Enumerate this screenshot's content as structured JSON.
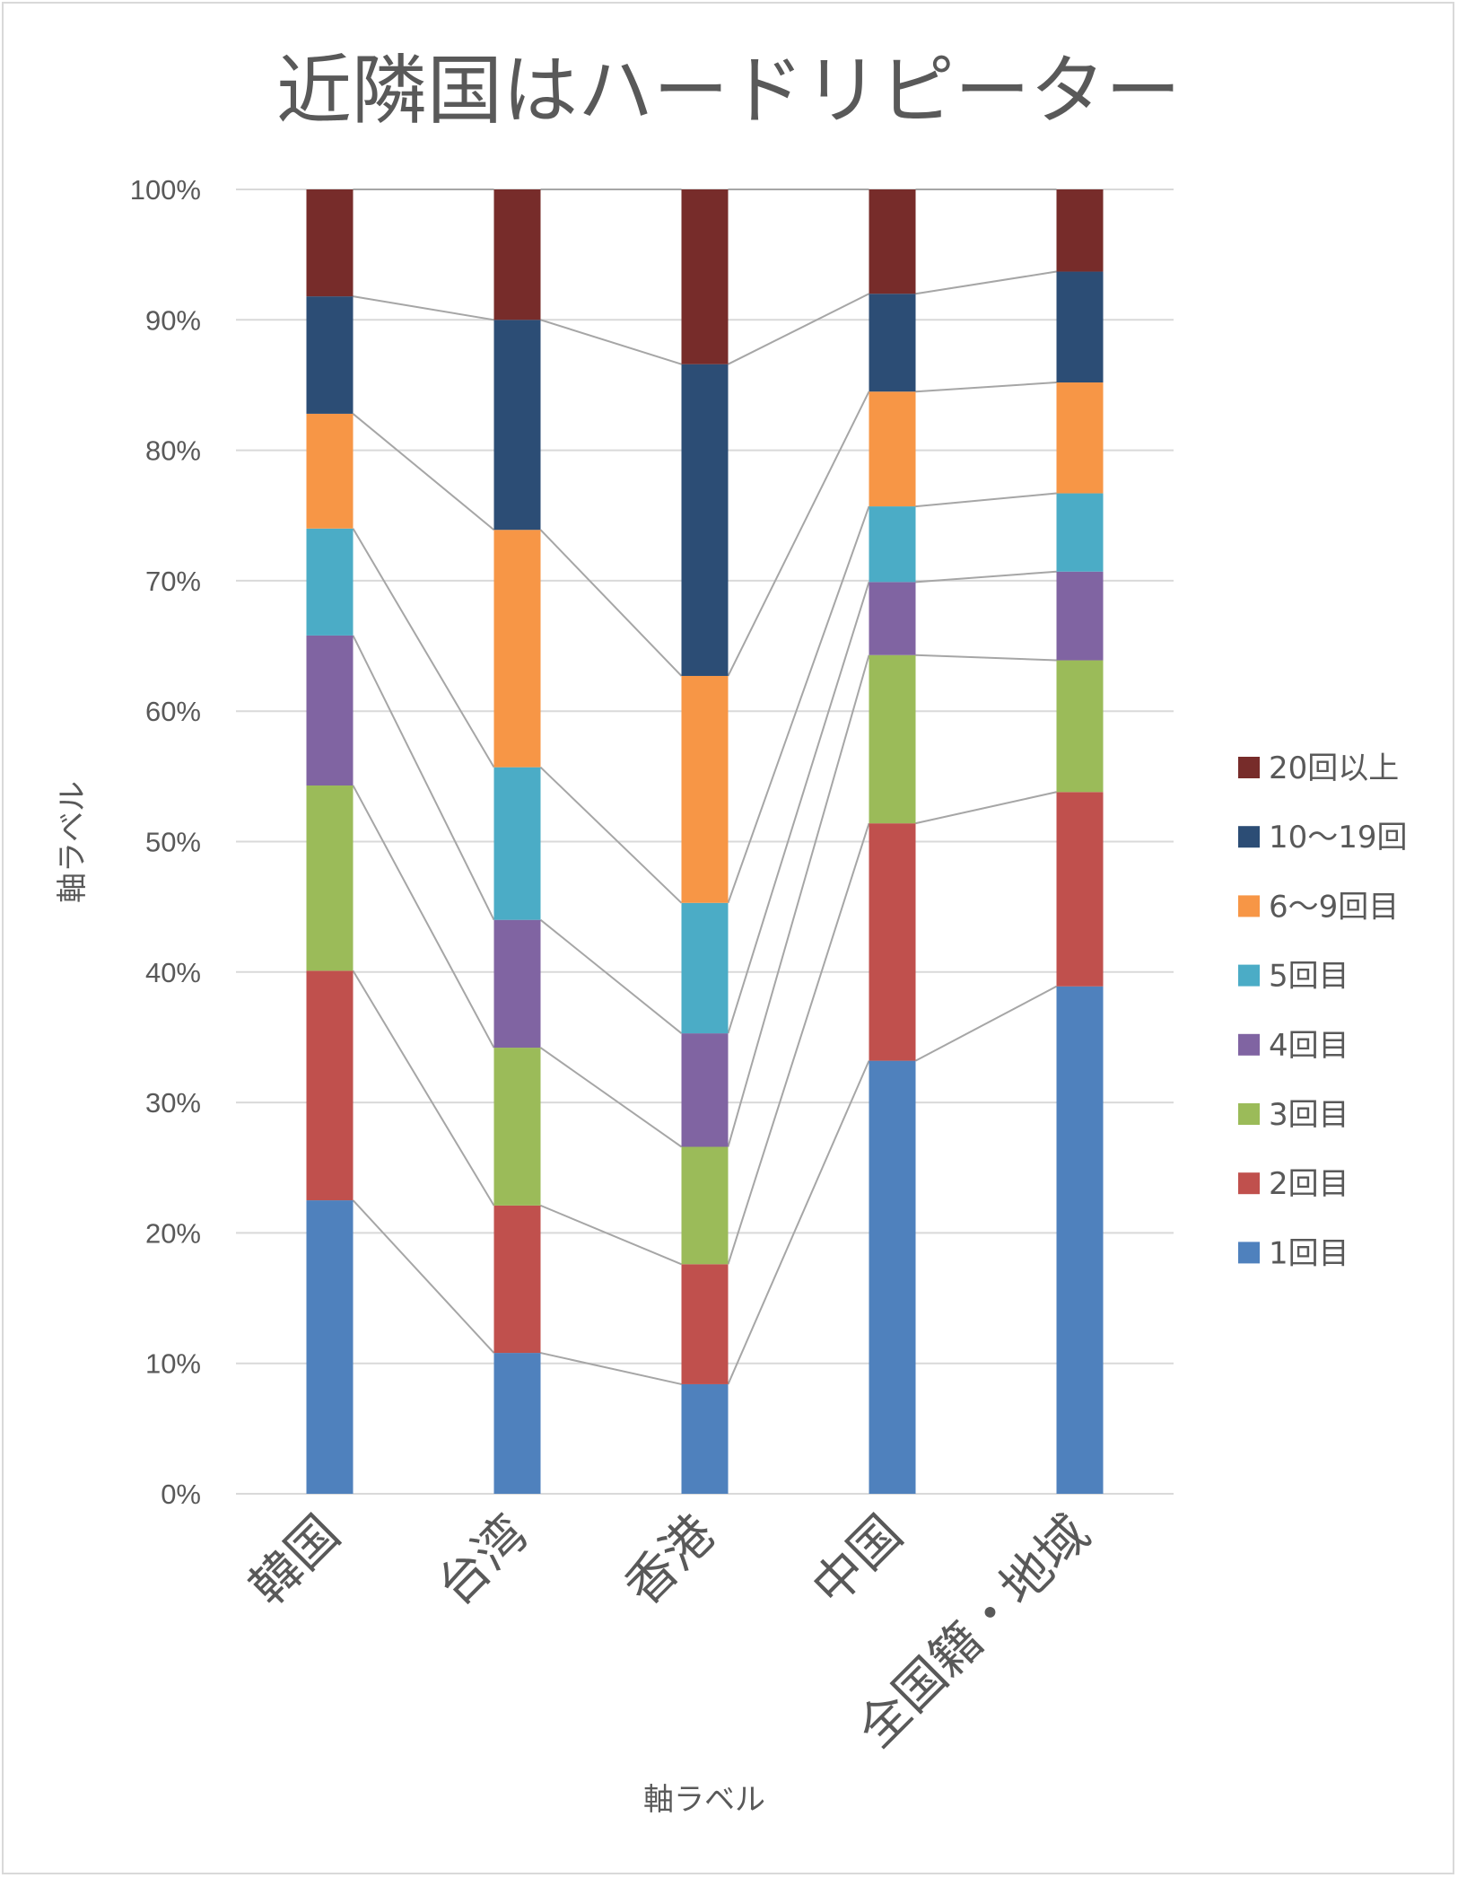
{
  "chart_data": {
    "type": "bar",
    "stacked": "percent",
    "title": "近隣国はハードリピーター",
    "xlabel": "軸ラベル",
    "ylabel": "軸ラベル",
    "ylim": [
      0,
      100
    ],
    "yticks": [
      "0%",
      "10%",
      "20%",
      "30%",
      "40%",
      "50%",
      "60%",
      "70%",
      "80%",
      "90%",
      "100%"
    ],
    "categories": [
      "韓国",
      "台湾",
      "香港",
      "中国",
      "全国籍・地域"
    ],
    "series": [
      {
        "name": "1回目",
        "color": "#4f81bd",
        "values": [
          22.5,
          10.8,
          8.4,
          33.2,
          38.9
        ]
      },
      {
        "name": "2回目",
        "color": "#c0504d",
        "values": [
          17.6,
          11.3,
          9.2,
          18.2,
          14.9
        ]
      },
      {
        "name": "3回目",
        "color": "#9bbb59",
        "values": [
          14.2,
          12.1,
          9.0,
          12.9,
          10.1
        ]
      },
      {
        "name": "4回目",
        "color": "#8064a2",
        "values": [
          11.5,
          9.8,
          8.7,
          5.6,
          6.8
        ]
      },
      {
        "name": "5回目",
        "color": "#4bacc6",
        "values": [
          8.2,
          11.7,
          10.0,
          5.8,
          6.0
        ]
      },
      {
        "name": "6～9回目",
        "color": "#f79646",
        "values": [
          8.8,
          18.2,
          17.4,
          8.8,
          8.5
        ]
      },
      {
        "name": "10～19回",
        "color": "#2c4d75",
        "values": [
          9.0,
          16.1,
          23.9,
          7.5,
          8.5
        ]
      },
      {
        "name": "20回以上",
        "color": "#772c2a",
        "values": [
          8.2,
          10.0,
          13.4,
          8.0,
          6.3
        ]
      }
    ],
    "series_lines": true,
    "gridlines": true,
    "legend_position": "right"
  }
}
